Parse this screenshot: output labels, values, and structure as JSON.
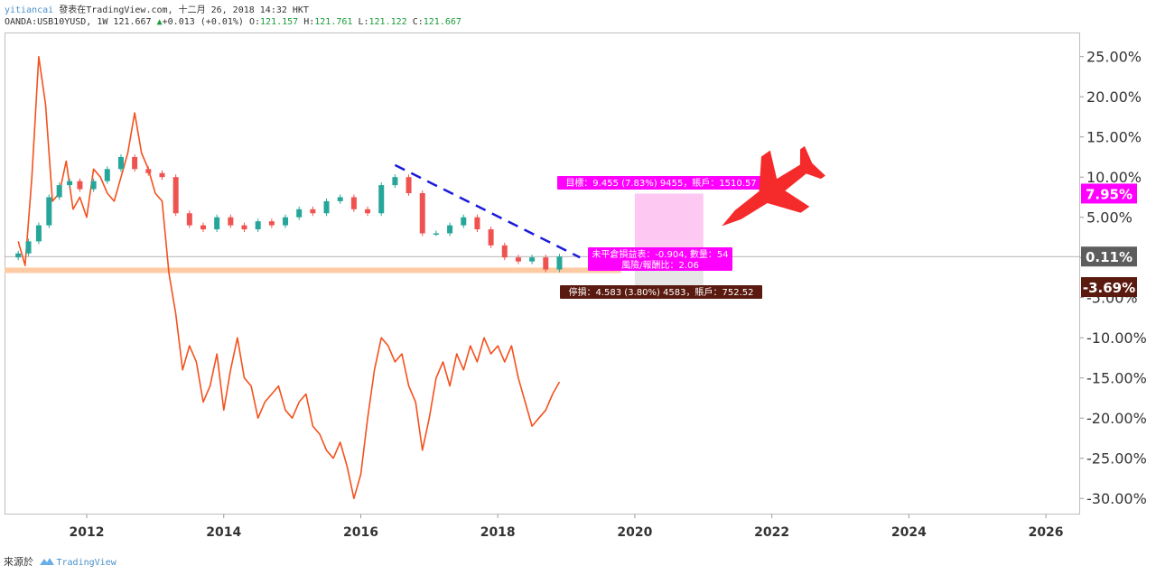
{
  "header": {
    "author": "yitiancai",
    "published": "發表在TradingView.com, 十二月 26, 2018 14:32 HKT",
    "symbol": "OANDA:USB10YUSD, 1W",
    "last": "121.667",
    "change_arrow": "▲",
    "change": "+0.013 (+0.01%)",
    "o_label": "O:",
    "o": "121.157",
    "h_label": "H:",
    "h": "121.761",
    "l_label": "L:",
    "l": "121.122",
    "c_label": "C:",
    "c": "121.667"
  },
  "footer": {
    "source": "來源於",
    "brand": "TradingView"
  },
  "colors": {
    "up_candle": "#26a69a",
    "down_candle": "#ef5350",
    "compare_line": "#f4511e",
    "trendline": "#1a1adb",
    "support_band": "#ffcba4",
    "target_zone": "#fdc9f3",
    "stop_zone": "#e6e6e6",
    "target_label": "#f0f",
    "stop_label": "#5a1a0f",
    "plane": "#f52a2a"
  },
  "chart_data": {
    "type": "line",
    "title": "",
    "xlabel": "",
    "ylabel": "",
    "x_ticks": [
      "2012",
      "2014",
      "2016",
      "2018",
      "2020",
      "2022",
      "2024",
      "2026"
    ],
    "y_ticks": [
      "25.00%",
      "20.00%",
      "15.00%",
      "10.00%",
      "5.00%",
      "0.00%",
      "-5.00%",
      "-10.00%",
      "-15.00%",
      "-20.00%",
      "-25.00%",
      "-30.00%"
    ],
    "xlim": [
      2010.8,
      2026.5
    ],
    "ylim": [
      -32,
      28
    ],
    "y_scale": "percent",
    "grid": false,
    "series": [
      {
        "style": "candles",
        "x": [
          2011.0,
          2011.15,
          2011.3,
          2011.45,
          2011.6,
          2011.75,
          2011.9,
          2012.1,
          2012.3,
          2012.5,
          2012.7,
          2012.9,
          2013.1,
          2013.3,
          2013.5,
          2013.7,
          2013.9,
          2014.1,
          2014.3,
          2014.5,
          2014.7,
          2014.9,
          2015.1,
          2015.3,
          2015.5,
          2015.7,
          2015.9,
          2016.1,
          2016.3,
          2016.5,
          2016.7,
          2016.9,
          2017.1,
          2017.3,
          2017.5,
          2017.7,
          2017.9,
          2018.1,
          2018.3,
          2018.5,
          2018.7,
          2018.9
        ],
        "values": [
          0.5,
          2.0,
          4.0,
          7.5,
          9.0,
          9.5,
          8.5,
          9.5,
          11.0,
          12.5,
          11.0,
          10.5,
          10.0,
          5.5,
          4.0,
          3.5,
          5.0,
          4.0,
          3.5,
          4.5,
          4.0,
          5.0,
          6.0,
          5.5,
          7.0,
          7.5,
          6.0,
          5.5,
          9.0,
          10.0,
          8.0,
          3.0,
          3.0,
          4.0,
          5.0,
          3.5,
          1.5,
          0.0,
          -0.5,
          0.0,
          -1.5,
          0.1
        ]
      },
      {
        "style": "line",
        "x": [
          2011.0,
          2011.1,
          2011.2,
          2011.3,
          2011.4,
          2011.5,
          2011.6,
          2011.7,
          2011.8,
          2011.9,
          2012.0,
          2012.1,
          2012.2,
          2012.3,
          2012.4,
          2012.5,
          2012.6,
          2012.7,
          2012.8,
          2012.9,
          2013.0,
          2013.1,
          2013.2,
          2013.3,
          2013.4,
          2013.5,
          2013.6,
          2013.7,
          2013.8,
          2013.9,
          2014.0,
          2014.1,
          2014.2,
          2014.3,
          2014.4,
          2014.5,
          2014.6,
          2014.7,
          2014.8,
          2014.9,
          2015.0,
          2015.1,
          2015.2,
          2015.3,
          2015.4,
          2015.5,
          2015.6,
          2015.7,
          2015.8,
          2015.9,
          2016.0,
          2016.1,
          2016.2,
          2016.3,
          2016.4,
          2016.5,
          2016.6,
          2016.7,
          2016.8,
          2016.9,
          2017.0,
          2017.1,
          2017.2,
          2017.3,
          2017.4,
          2017.5,
          2017.6,
          2017.7,
          2017.8,
          2017.9,
          2018.0,
          2018.1,
          2018.2,
          2018.3,
          2018.4,
          2018.5,
          2018.6,
          2018.7,
          2018.8,
          2018.9
        ],
        "values": [
          2.0,
          -1.0,
          10.0,
          25.0,
          19.0,
          7.0,
          8.0,
          12.0,
          6.0,
          7.5,
          5.0,
          11.0,
          10.0,
          8.0,
          7.0,
          10.0,
          13.0,
          18.0,
          13.0,
          11.0,
          8.0,
          7.0,
          -2.0,
          -7.0,
          -14.0,
          -11.0,
          -13.0,
          -18.0,
          -16.0,
          -12.0,
          -19.0,
          -14.0,
          -10.0,
          -15.0,
          -16.0,
          -20.0,
          -18.0,
          -17.0,
          -16.0,
          -19.0,
          -20.0,
          -18.0,
          -17.0,
          -21.0,
          -22.0,
          -24.0,
          -25.0,
          -23.0,
          -26.0,
          -30.0,
          -27.0,
          -20.0,
          -14.0,
          -10.0,
          -11.0,
          -13.0,
          -12.0,
          -16.0,
          -18.0,
          -24.0,
          -20.0,
          -15.0,
          -13.0,
          -16.0,
          -12.0,
          -14.0,
          -11.0,
          -13.0,
          -10.0,
          -12.0,
          -11.0,
          -13.0,
          -11.0,
          -15.0,
          -18.0,
          -21.0,
          -20.0,
          -19.0,
          -17.0,
          -15.5
        ]
      }
    ],
    "trendline": {
      "x": [
        2016.5,
        2019.2
      ],
      "values": [
        11.5,
        0.0
      ]
    },
    "support_level": -1.6,
    "position": {
      "x_start": 2020.0,
      "x_end": 2021.0,
      "target": 7.95,
      "entry": 0.11,
      "stop": -3.69
    },
    "annotations": {
      "target_text": "目標：9.455 (7.83%) 9455，賬戶：1510.57",
      "open_pl_text": "未平倉損益表：-0.904, 數量：54",
      "risk_reward_text": "風險/報酬比：2.06",
      "stop_text": "停損：4.583 (3.80%) 4583，賬戶：752.52",
      "target_badge": "7.95%",
      "entry_badge": "0.11%",
      "stop_badge": "-3.69%"
    }
  }
}
